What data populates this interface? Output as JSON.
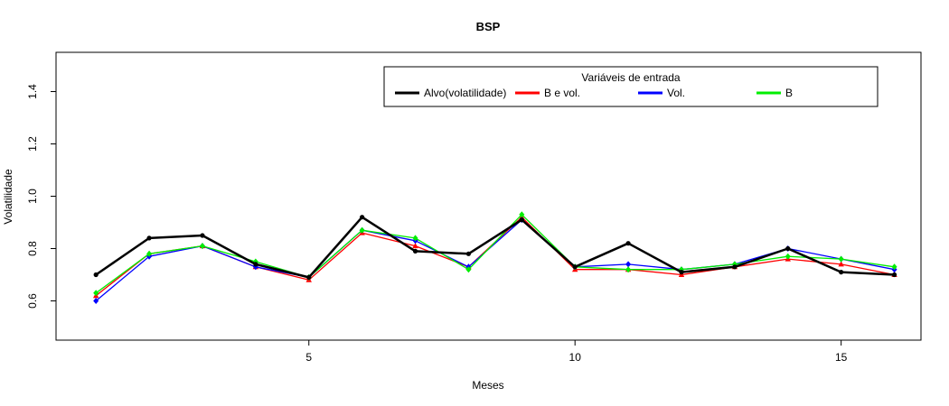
{
  "chart_data": {
    "type": "line",
    "title": "BSP",
    "xlabel": "Meses",
    "ylabel": "Volatilidade",
    "x": [
      1,
      2,
      3,
      4,
      5,
      6,
      7,
      8,
      9,
      10,
      11,
      12,
      13,
      14,
      15,
      16
    ],
    "xlim": [
      0.25,
      16.5
    ],
    "ylim": [
      0.45,
      1.55
    ],
    "xticks": [
      5,
      10,
      15
    ],
    "yticks": [
      0.6,
      0.8,
      1.0,
      1.2,
      1.4
    ],
    "ytick_labels": [
      "0.6",
      "0.8",
      "1.0",
      "1.2",
      "1.4"
    ],
    "grid": false,
    "legend": {
      "title": "Variáveis de entrada",
      "placement": "top-right",
      "entries": [
        "Alvo(volatilidade)",
        "B e vol.",
        "Vol.",
        "B"
      ]
    },
    "series": [
      {
        "name": "Alvo(volatilidade)",
        "color": "#000000",
        "marker": "circle",
        "values": [
          0.7,
          0.84,
          0.85,
          0.74,
          0.69,
          0.92,
          0.79,
          0.78,
          0.91,
          0.73,
          0.82,
          0.71,
          0.73,
          0.8,
          0.71,
          0.7
        ]
      },
      {
        "name": "B e vol.",
        "color": "#ff0000",
        "marker": "triangle",
        "values": [
          0.62,
          0.78,
          0.81,
          0.73,
          0.68,
          0.86,
          0.81,
          0.73,
          0.92,
          0.72,
          0.72,
          0.7,
          0.73,
          0.76,
          0.74,
          0.7
        ]
      },
      {
        "name": "Vol.",
        "color": "#0000ff",
        "marker": "diamond",
        "values": [
          0.6,
          0.77,
          0.81,
          0.73,
          0.69,
          0.87,
          0.83,
          0.73,
          0.91,
          0.73,
          0.74,
          0.72,
          0.74,
          0.8,
          0.76,
          0.72
        ]
      },
      {
        "name": "B",
        "color": "#00ee00",
        "marker": "diamond",
        "values": [
          0.63,
          0.78,
          0.81,
          0.75,
          0.69,
          0.87,
          0.84,
          0.72,
          0.93,
          0.73,
          0.72,
          0.72,
          0.74,
          0.77,
          0.76,
          0.73
        ]
      }
    ]
  }
}
